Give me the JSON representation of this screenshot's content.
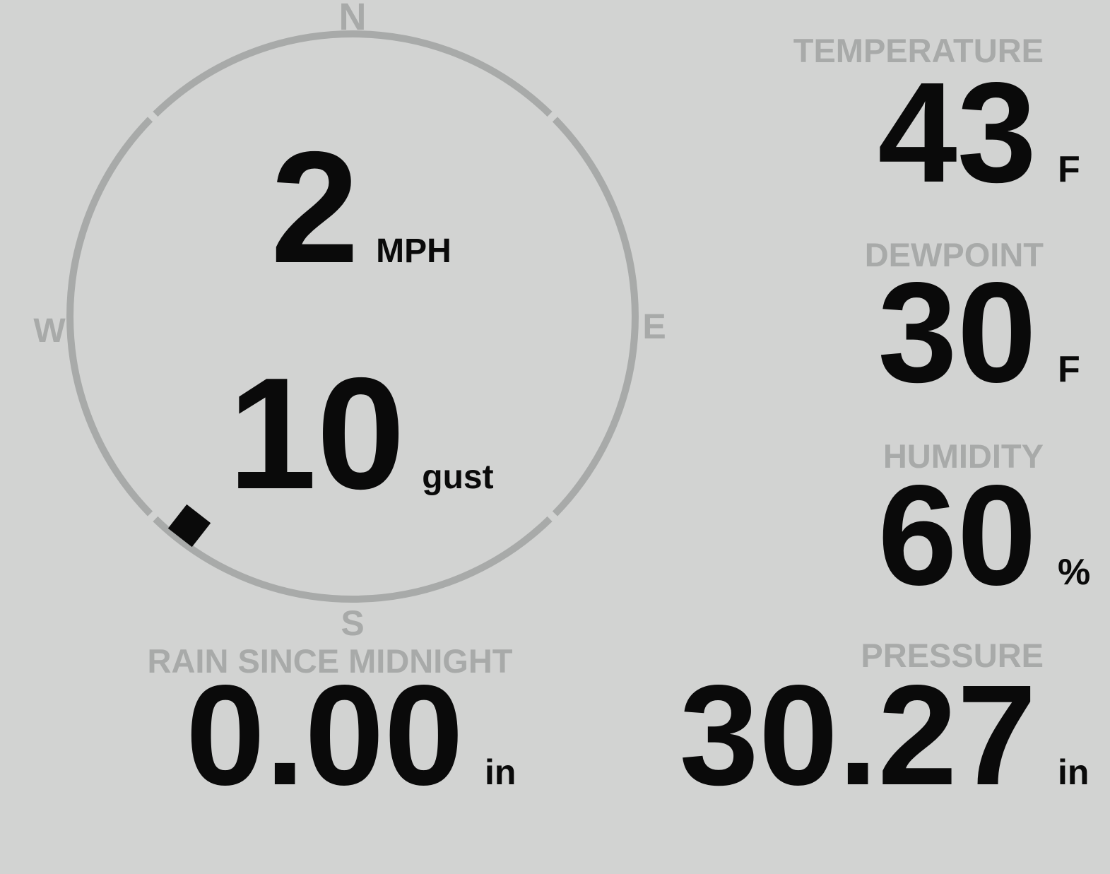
{
  "wind": {
    "speed": "2",
    "speed_unit": "MPH",
    "gust": "10",
    "gust_unit": "gust",
    "direction_degrees": 218,
    "cardinals": {
      "north": "N",
      "east": "E",
      "south": "S",
      "west": "W"
    }
  },
  "metrics": {
    "temperature": {
      "label": "TEMPERATURE",
      "value": "43",
      "unit": "F"
    },
    "dewpoint": {
      "label": "DEWPOINT",
      "value": "30",
      "unit": "F"
    },
    "humidity": {
      "label": "HUMIDITY",
      "value": "60",
      "unit": "%"
    },
    "rain": {
      "label": "RAIN SINCE MIDNIGHT",
      "value": "0.00",
      "unit": "in"
    },
    "pressure": {
      "label": "PRESSURE",
      "value": "30.27",
      "unit": "in"
    }
  },
  "colors": {
    "background": "#d2d3d2",
    "muted_gray": "#a8aaa9",
    "value_black": "#0a0a0a"
  }
}
